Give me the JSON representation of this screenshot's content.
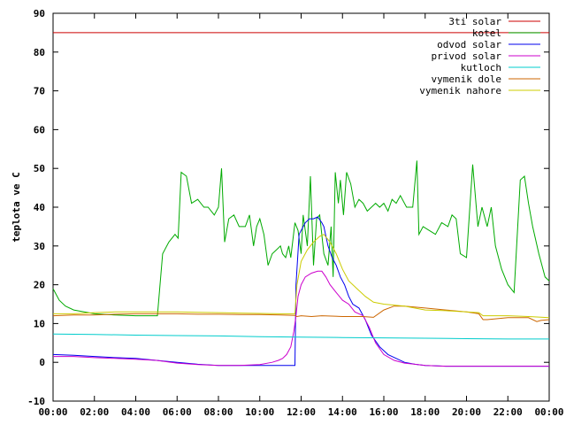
{
  "chart_data": {
    "type": "line",
    "title": "",
    "xlabel": "",
    "ylabel": "teplota ve C",
    "ylim": [
      -10,
      90
    ],
    "yticks": [
      -10,
      0,
      10,
      20,
      30,
      40,
      50,
      60,
      70,
      80,
      90
    ],
    "xlim": [
      0,
      24
    ],
    "xticks": [
      0,
      2,
      4,
      6,
      8,
      10,
      12,
      14,
      16,
      18,
      20,
      22,
      24
    ],
    "xtick_labels": [
      "00:00",
      "02:00",
      "04:00",
      "06:00",
      "08:00",
      "10:00",
      "12:00",
      "14:00",
      "16:00",
      "18:00",
      "20:00",
      "22:00",
      "00:00"
    ],
    "grid": false,
    "legend_position": "top-right",
    "series": [
      {
        "name": "3ti solar",
        "color": "#cc0000",
        "x": [
          0,
          24
        ],
        "y": [
          85,
          85
        ]
      },
      {
        "name": "kotel",
        "color": "#00aa00",
        "x": [
          0,
          0.3,
          0.6,
          1,
          1.5,
          2,
          3,
          4,
          4.6,
          5.05,
          5.3,
          5.6,
          5.9,
          6.05,
          6.2,
          6.45,
          6.7,
          7,
          7.3,
          7.5,
          7.8,
          8,
          8.15,
          8.3,
          8.5,
          8.75,
          9,
          9.3,
          9.5,
          9.7,
          9.85,
          10,
          10.2,
          10.4,
          10.6,
          10.8,
          11,
          11.1,
          11.25,
          11.4,
          11.5,
          11.7,
          11.85,
          12,
          12.1,
          12.3,
          12.45,
          12.6,
          12.75,
          12.9,
          13.1,
          13.3,
          13.45,
          13.55,
          13.65,
          13.8,
          13.9,
          14.05,
          14.2,
          14.4,
          14.6,
          14.8,
          15,
          15.2,
          15.4,
          15.6,
          15.8,
          16,
          16.2,
          16.4,
          16.6,
          16.8,
          17.1,
          17.4,
          17.6,
          17.7,
          17.9,
          18.2,
          18.5,
          18.8,
          19.1,
          19.3,
          19.5,
          19.7,
          20,
          20.3,
          20.55,
          20.75,
          21,
          21.2,
          21.4,
          21.7,
          22,
          22.3,
          22.6,
          22.8,
          23.0,
          23.2,
          23.5,
          23.8,
          24
        ],
        "y": [
          19,
          16,
          14.5,
          13.5,
          13,
          12.5,
          12.2,
          12,
          12,
          12,
          28,
          31,
          33,
          32,
          49,
          48,
          41,
          42,
          40,
          40,
          38,
          40,
          50,
          31,
          37,
          38,
          35,
          35,
          38,
          30,
          35,
          37,
          33,
          25,
          28,
          29,
          30,
          28,
          27,
          30,
          27,
          36,
          34,
          28,
          38,
          30,
          48,
          25,
          37,
          38,
          28,
          25,
          35,
          22,
          49,
          41,
          47,
          38,
          49,
          46,
          40,
          42,
          41,
          39,
          40,
          41,
          40,
          41,
          39,
          42,
          41,
          43,
          40,
          40,
          52,
          33,
          35,
          34,
          33,
          36,
          35,
          38,
          37,
          28,
          27,
          51,
          35,
          40,
          35,
          40,
          30,
          24,
          20,
          18,
          47,
          48,
          41,
          35,
          28,
          22,
          21
        ]
      },
      {
        "name": "odvod solar",
        "color": "#0000ee",
        "x": [
          0,
          1,
          2,
          3,
          4,
          5,
          6,
          7,
          8,
          9,
          10,
          11,
          11.5,
          11.7,
          11.75,
          11.9,
          12.0,
          12.2,
          12.4,
          12.6,
          12.8,
          13.0,
          13.1,
          13.3,
          13.5,
          13.7,
          13.9,
          14.1,
          14.3,
          14.5,
          14.8,
          15.1,
          15.4,
          15.8,
          16.2,
          16.6,
          17,
          17.5,
          18,
          19,
          20,
          21,
          22,
          23,
          24
        ],
        "y": [
          2,
          1.8,
          1.5,
          1.2,
          1,
          0.5,
          0,
          -0.5,
          -0.8,
          -0.8,
          -0.8,
          -0.8,
          -0.8,
          -0.8,
          20,
          33,
          34,
          36,
          37,
          37,
          37.5,
          36,
          35,
          30,
          27,
          25,
          22,
          20,
          17,
          15,
          14,
          11,
          7,
          4,
          2,
          1,
          0,
          -0.5,
          -0.8,
          -1,
          -1,
          -1,
          -1,
          -1,
          -1
        ]
      },
      {
        "name": "privod solar",
        "color": "#cc00cc",
        "x": [
          0,
          1,
          2,
          3,
          4,
          5,
          6,
          7,
          8,
          9,
          10,
          10.6,
          10.9,
          11.1,
          11.3,
          11.5,
          11.65,
          11.75,
          11.85,
          12.0,
          12.2,
          12.5,
          12.8,
          13.0,
          13.2,
          13.4,
          13.7,
          14.0,
          14.3,
          14.6,
          15.0,
          15.3,
          15.6,
          16.0,
          16.5,
          17,
          17.5,
          18,
          19,
          20,
          21,
          22,
          23,
          24
        ],
        "y": [
          1.5,
          1.5,
          1.2,
          1,
          0.8,
          0.5,
          -0.2,
          -0.6,
          -0.8,
          -0.8,
          -0.6,
          0,
          0.5,
          1,
          2,
          4,
          8,
          12,
          17,
          20,
          22,
          23,
          23.5,
          23.5,
          22,
          20,
          18,
          16,
          15,
          13,
          12,
          9,
          5,
          2,
          0.5,
          -0.2,
          -0.5,
          -0.8,
          -1,
          -1,
          -1,
          -1,
          -1,
          -1
        ]
      },
      {
        "name": "kutloch",
        "color": "#00cccc",
        "x": [
          0,
          2,
          4,
          6,
          8,
          10,
          12,
          14,
          16,
          18,
          20,
          22,
          24
        ],
        "y": [
          7.3,
          7.2,
          7.0,
          6.9,
          6.8,
          6.6,
          6.5,
          6.4,
          6.3,
          6.2,
          6.1,
          6.0,
          6.0
        ]
      },
      {
        "name": "vymenik dole",
        "color": "#cc6600",
        "x": [
          0,
          1,
          2,
          3,
          4,
          5,
          6,
          7,
          8,
          9,
          10,
          11,
          11.7,
          11.8,
          12,
          12.5,
          13,
          14,
          15,
          15.5,
          16,
          16.5,
          17,
          18,
          19,
          20,
          20.6,
          20.8,
          21,
          22,
          23,
          23.4,
          23.6,
          24
        ],
        "y": [
          12,
          12.2,
          12.2,
          12.4,
          12.5,
          12.5,
          12.5,
          12.4,
          12.4,
          12.3,
          12.3,
          12.2,
          12.1,
          11.8,
          12,
          11.8,
          12,
          11.8,
          11.8,
          11.6,
          13.5,
          14.5,
          14.5,
          14,
          13.5,
          13,
          12.5,
          11,
          11,
          11.5,
          11.5,
          10.5,
          10.8,
          11
        ]
      },
      {
        "name": "vymenik nahore",
        "color": "#cccc00",
        "x": [
          0,
          1,
          2,
          3,
          4,
          5,
          6,
          7,
          8,
          9,
          10,
          11,
          11.7,
          11.8,
          12,
          12.3,
          12.6,
          12.9,
          13.1,
          13.4,
          13.7,
          14.0,
          14.3,
          14.7,
          15.1,
          15.5,
          16,
          17,
          18,
          19,
          20,
          20.6,
          20.8,
          21,
          22,
          23,
          24
        ],
        "y": [
          12.5,
          12.5,
          12.8,
          13,
          13,
          13,
          13,
          12.9,
          12.8,
          12.7,
          12.6,
          12.5,
          12.5,
          20,
          26,
          29,
          31,
          32.5,
          33,
          31,
          28,
          24,
          21,
          19,
          17,
          15.5,
          15,
          14.5,
          13.5,
          13.3,
          13,
          12.8,
          12,
          12,
          12,
          11.8,
          11.5
        ]
      }
    ]
  }
}
